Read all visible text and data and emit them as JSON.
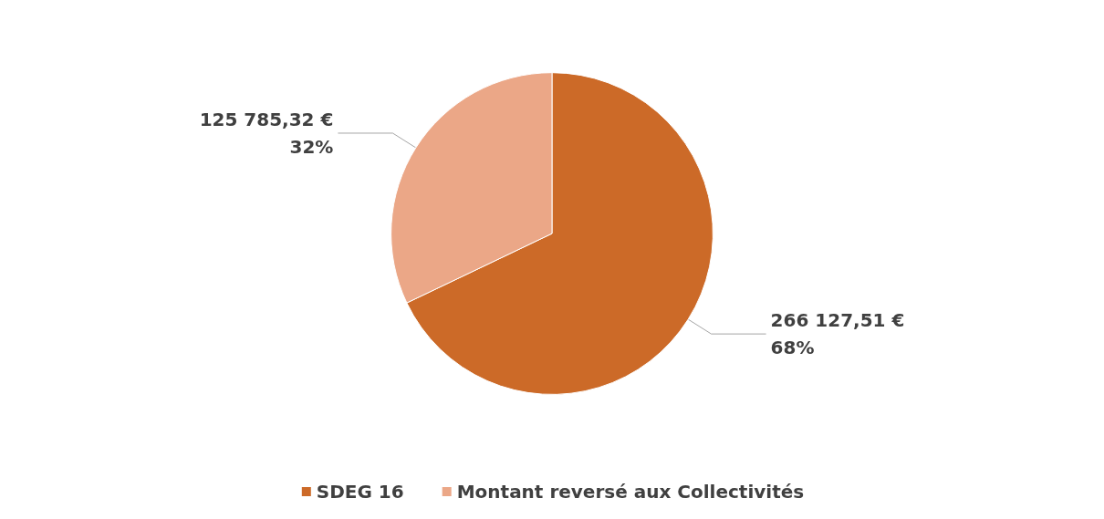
{
  "chart_data": {
    "type": "pie",
    "categories": [
      "SDEG 16",
      "Montant reversé aux Collectivités"
    ],
    "values": [
      266127.51,
      125785.32
    ],
    "colors": [
      "#cc6a28",
      "#eba787"
    ],
    "value_labels": [
      "266 127,51 €\n68%",
      "125 785,32 €\n32%"
    ],
    "legend": "bottom"
  }
}
